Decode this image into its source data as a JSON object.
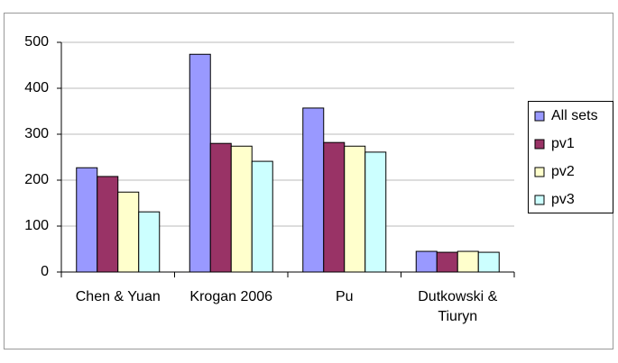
{
  "chart_data": {
    "type": "bar",
    "categories": [
      "Chen & Yuan",
      "Krogan 2006",
      "Pu",
      "Dutkowski & Tiuryn"
    ],
    "series": [
      {
        "name": "All sets",
        "color": "#9999ff",
        "values": [
          227,
          474,
          357,
          45
        ]
      },
      {
        "name": "pv1",
        "color": "#993366",
        "values": [
          208,
          280,
          282,
          43
        ]
      },
      {
        "name": "pv2",
        "color": "#ffffcc",
        "values": [
          174,
          274,
          274,
          45
        ]
      },
      {
        "name": "pv3",
        "color": "#ccffff",
        "values": [
          131,
          241,
          261,
          43
        ]
      }
    ],
    "ylim": [
      0,
      500
    ],
    "yticks": [
      0,
      100,
      200,
      300,
      400,
      500
    ],
    "grid": true,
    "legend": "right"
  }
}
